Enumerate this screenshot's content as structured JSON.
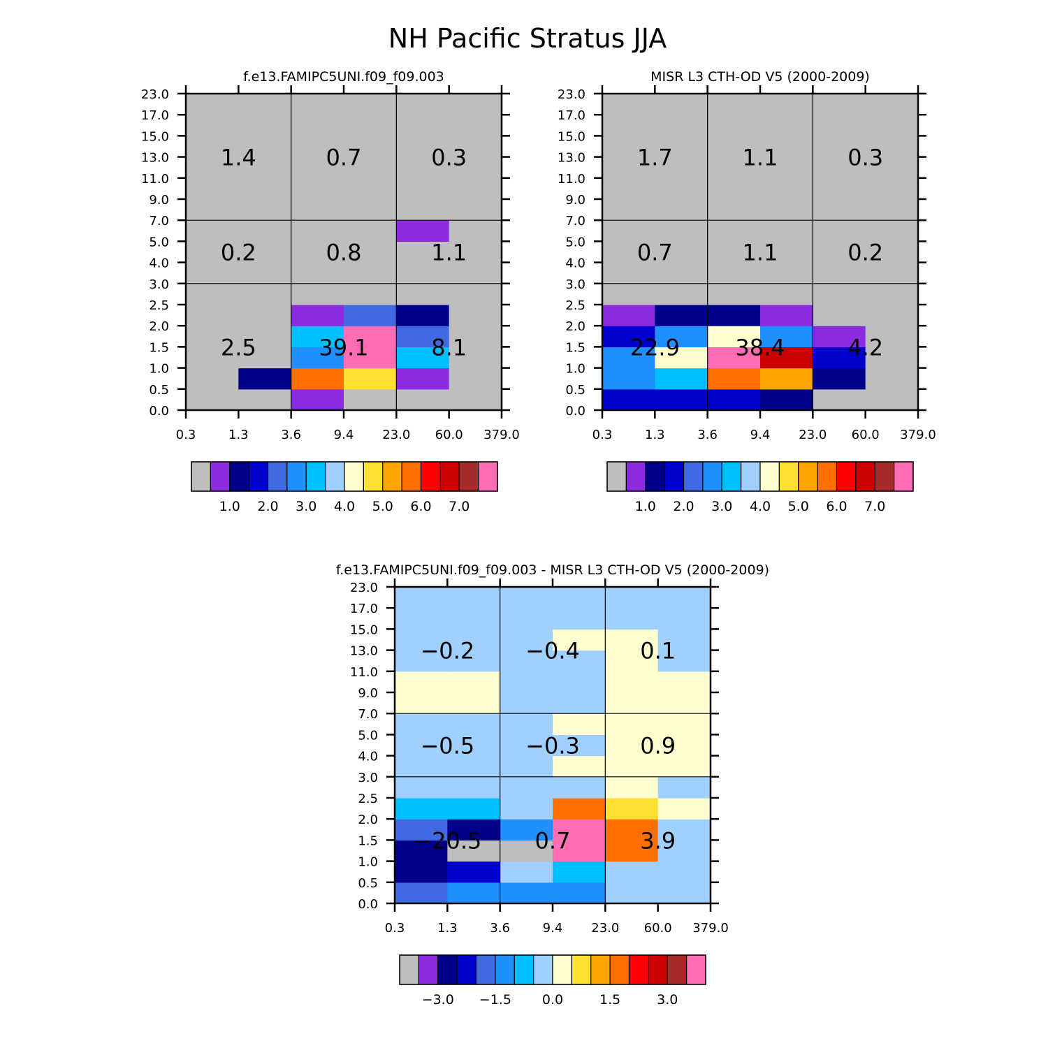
{
  "title": "NH Pacific Stratus JJA",
  "chart_data": {
    "type": "heatmap",
    "x_tick_labels": [
      "0.3",
      "1.3",
      "3.6",
      "9.4",
      "23.0",
      "60.0",
      "379.0"
    ],
    "y_tick_labels": [
      "0.0",
      "0.5",
      "1.0",
      "1.5",
      "2.0",
      "2.5",
      "3.0",
      "4.0",
      "5.0",
      "7.0",
      "9.0",
      "11.0",
      "13.0",
      "15.0",
      "17.0",
      "23.0"
    ],
    "panels": [
      {
        "id": "model",
        "title": "f.e13.FAMIPC5UNI.f09_f09.003",
        "cells": [
          [
            "#BEBEBE",
            "#BEBEBE",
            "#8A2BE2",
            "#BEBEBE",
            "#BEBEBE",
            "#BEBEBE"
          ],
          [
            "#BEBEBE",
            "#00008B",
            "#FF7000",
            "#FFE030",
            "#8A2BE2",
            "#BEBEBE"
          ],
          [
            "#BEBEBE",
            "#BEBEBE",
            "#1E90FF",
            "#FF6EB4",
            "#00BFFF",
            "#BEBEBE"
          ],
          [
            "#BEBEBE",
            "#BEBEBE",
            "#00BFFF",
            "#FF6EB4",
            "#4169E1",
            "#BEBEBE"
          ],
          [
            "#BEBEBE",
            "#BEBEBE",
            "#8A2BE2",
            "#4169E1",
            "#00008B",
            "#BEBEBE"
          ],
          [
            "#BEBEBE",
            "#BEBEBE",
            "#BEBEBE",
            "#BEBEBE",
            "#BEBEBE",
            "#BEBEBE"
          ],
          [
            "#BEBEBE",
            "#BEBEBE",
            "#BEBEBE",
            "#BEBEBE",
            "#BEBEBE",
            "#BEBEBE"
          ],
          [
            "#BEBEBE",
            "#BEBEBE",
            "#BEBEBE",
            "#BEBEBE",
            "#BEBEBE",
            "#BEBEBE"
          ],
          [
            "#BEBEBE",
            "#BEBEBE",
            "#BEBEBE",
            "#BEBEBE",
            "#8A2BE2",
            "#BEBEBE"
          ],
          [
            "#BEBEBE",
            "#BEBEBE",
            "#BEBEBE",
            "#BEBEBE",
            "#BEBEBE",
            "#BEBEBE"
          ],
          [
            "#BEBEBE",
            "#BEBEBE",
            "#BEBEBE",
            "#BEBEBE",
            "#BEBEBE",
            "#BEBEBE"
          ],
          [
            "#BEBEBE",
            "#BEBEBE",
            "#BEBEBE",
            "#BEBEBE",
            "#BEBEBE",
            "#BEBEBE"
          ],
          [
            "#BEBEBE",
            "#BEBEBE",
            "#BEBEBE",
            "#BEBEBE",
            "#BEBEBE",
            "#BEBEBE"
          ],
          [
            "#BEBEBE",
            "#BEBEBE",
            "#BEBEBE",
            "#BEBEBE",
            "#BEBEBE",
            "#BEBEBE"
          ],
          [
            "#BEBEBE",
            "#BEBEBE",
            "#BEBEBE",
            "#BEBEBE",
            "#BEBEBE",
            "#BEBEBE"
          ]
        ],
        "block_totals": [
          {
            "col": 0,
            "row": 0,
            "text": "2.5"
          },
          {
            "col": 1,
            "row": 0,
            "text": "39.1"
          },
          {
            "col": 2,
            "row": 0,
            "text": "8.1"
          },
          {
            "col": 0,
            "row": 1,
            "text": "0.2"
          },
          {
            "col": 1,
            "row": 1,
            "text": "0.8"
          },
          {
            "col": 2,
            "row": 1,
            "text": "1.1"
          },
          {
            "col": 0,
            "row": 2,
            "text": "1.4"
          },
          {
            "col": 1,
            "row": 2,
            "text": "0.7"
          },
          {
            "col": 2,
            "row": 2,
            "text": "0.3"
          }
        ],
        "colorbar": {
          "colors": [
            "#BEBEBE",
            "#8A2BE2",
            "#00008B",
            "#0000CD",
            "#4169E1",
            "#1E90FF",
            "#00BFFF",
            "#A0D0FF",
            "#FFFFD0",
            "#FFE030",
            "#FFA500",
            "#FF7000",
            "#FF0000",
            "#CD0000",
            "#A52A2A",
            "#FF6EB4"
          ],
          "labels": [
            "1.0",
            "2.0",
            "3.0",
            "4.0",
            "5.0",
            "6.0",
            "7.0"
          ]
        }
      },
      {
        "id": "obs",
        "title": "MISR L3 CTH-OD V5 (2000-2009)",
        "cells": [
          [
            "#0000CD",
            "#0000CD",
            "#0000CD",
            "#00008B",
            "#BEBEBE",
            "#BEBEBE"
          ],
          [
            "#1E90FF",
            "#00BFFF",
            "#FF7000",
            "#FFA500",
            "#00008B",
            "#BEBEBE"
          ],
          [
            "#1E90FF",
            "#FFFFD0",
            "#FF6EB4",
            "#CD0000",
            "#0000CD",
            "#BEBEBE"
          ],
          [
            "#0000CD",
            "#1E90FF",
            "#FFFFD0",
            "#1E90FF",
            "#8A2BE2",
            "#BEBEBE"
          ],
          [
            "#8A2BE2",
            "#00008B",
            "#00008B",
            "#8A2BE2",
            "#BEBEBE",
            "#BEBEBE"
          ],
          [
            "#BEBEBE",
            "#BEBEBE",
            "#BEBEBE",
            "#BEBEBE",
            "#BEBEBE",
            "#BEBEBE"
          ],
          [
            "#BEBEBE",
            "#BEBEBE",
            "#BEBEBE",
            "#BEBEBE",
            "#BEBEBE",
            "#BEBEBE"
          ],
          [
            "#BEBEBE",
            "#BEBEBE",
            "#BEBEBE",
            "#BEBEBE",
            "#BEBEBE",
            "#BEBEBE"
          ],
          [
            "#BEBEBE",
            "#BEBEBE",
            "#BEBEBE",
            "#BEBEBE",
            "#BEBEBE",
            "#BEBEBE"
          ],
          [
            "#BEBEBE",
            "#BEBEBE",
            "#BEBEBE",
            "#BEBEBE",
            "#BEBEBE",
            "#BEBEBE"
          ],
          [
            "#BEBEBE",
            "#BEBEBE",
            "#BEBEBE",
            "#BEBEBE",
            "#BEBEBE",
            "#BEBEBE"
          ],
          [
            "#BEBEBE",
            "#BEBEBE",
            "#BEBEBE",
            "#BEBEBE",
            "#BEBEBE",
            "#BEBEBE"
          ],
          [
            "#BEBEBE",
            "#BEBEBE",
            "#BEBEBE",
            "#BEBEBE",
            "#BEBEBE",
            "#BEBEBE"
          ],
          [
            "#BEBEBE",
            "#BEBEBE",
            "#BEBEBE",
            "#BEBEBE",
            "#BEBEBE",
            "#BEBEBE"
          ],
          [
            "#BEBEBE",
            "#BEBEBE",
            "#BEBEBE",
            "#BEBEBE",
            "#BEBEBE",
            "#BEBEBE"
          ]
        ],
        "block_totals": [
          {
            "col": 0,
            "row": 0,
            "text": "22.9"
          },
          {
            "col": 1,
            "row": 0,
            "text": "38.4"
          },
          {
            "col": 2,
            "row": 0,
            "text": "4.2"
          },
          {
            "col": 0,
            "row": 1,
            "text": "0.7"
          },
          {
            "col": 1,
            "row": 1,
            "text": "1.1"
          },
          {
            "col": 2,
            "row": 1,
            "text": "0.2"
          },
          {
            "col": 0,
            "row": 2,
            "text": "1.7"
          },
          {
            "col": 1,
            "row": 2,
            "text": "1.1"
          },
          {
            "col": 2,
            "row": 2,
            "text": "0.3"
          }
        ],
        "colorbar": {
          "colors": [
            "#BEBEBE",
            "#8A2BE2",
            "#00008B",
            "#0000CD",
            "#4169E1",
            "#1E90FF",
            "#00BFFF",
            "#A0D0FF",
            "#FFFFD0",
            "#FFE030",
            "#FFA500",
            "#FF7000",
            "#FF0000",
            "#CD0000",
            "#A52A2A",
            "#FF6EB4"
          ],
          "labels": [
            "1.0",
            "2.0",
            "3.0",
            "4.0",
            "5.0",
            "6.0",
            "7.0"
          ]
        }
      },
      {
        "id": "diff",
        "title": "f.e13.FAMIPC5UNI.f09_f09.003 - MISR L3 CTH-OD V5 (2000-2009)",
        "cells": [
          [
            "#4169E1",
            "#1E90FF",
            "#1E90FF",
            "#1E90FF",
            "#A0D0FF",
            "#A0D0FF"
          ],
          [
            "#00008B",
            "#0000CD",
            "#A0D0FF",
            "#00BFFF",
            "#A0D0FF",
            "#A0D0FF"
          ],
          [
            "#00008B",
            "#BEBEBE",
            "#BEBEBE",
            "#FF6EB4",
            "#FF7000",
            "#A0D0FF"
          ],
          [
            "#4169E1",
            "#00008B",
            "#1E90FF",
            "#FF6EB4",
            "#FF7000",
            "#A0D0FF"
          ],
          [
            "#00BFFF",
            "#00BFFF",
            "#A0D0FF",
            "#FF7000",
            "#FFE030",
            "#FFFFD0"
          ],
          [
            "#A0D0FF",
            "#A0D0FF",
            "#A0D0FF",
            "#A0D0FF",
            "#FFFFD0",
            "#A0D0FF"
          ],
          [
            "#A0D0FF",
            "#A0D0FF",
            "#A0D0FF",
            "#FFFFD0",
            "#FFFFD0",
            "#FFFFD0"
          ],
          [
            "#A0D0FF",
            "#A0D0FF",
            "#A0D0FF",
            "#A0D0FF",
            "#FFFFD0",
            "#FFFFD0"
          ],
          [
            "#A0D0FF",
            "#A0D0FF",
            "#A0D0FF",
            "#FFFFD0",
            "#FFFFD0",
            "#FFFFD0"
          ],
          [
            "#FFFFD0",
            "#FFFFD0",
            "#A0D0FF",
            "#A0D0FF",
            "#FFFFD0",
            "#FFFFD0"
          ],
          [
            "#FFFFD0",
            "#FFFFD0",
            "#A0D0FF",
            "#A0D0FF",
            "#FFFFD0",
            "#FFFFD0"
          ],
          [
            "#A0D0FF",
            "#A0D0FF",
            "#A0D0FF",
            "#A0D0FF",
            "#FFFFD0",
            "#A0D0FF"
          ],
          [
            "#A0D0FF",
            "#A0D0FF",
            "#A0D0FF",
            "#FFFFD0",
            "#FFFFD0",
            "#A0D0FF"
          ],
          [
            "#A0D0FF",
            "#A0D0FF",
            "#A0D0FF",
            "#A0D0FF",
            "#A0D0FF",
            "#A0D0FF"
          ],
          [
            "#A0D0FF",
            "#A0D0FF",
            "#A0D0FF",
            "#A0D0FF",
            "#A0D0FF",
            "#A0D0FF"
          ]
        ],
        "block_totals": [
          {
            "col": 0,
            "row": 0,
            "text": "-20.5"
          },
          {
            "col": 1,
            "row": 0,
            "text": "0.7"
          },
          {
            "col": 2,
            "row": 0,
            "text": "3.9"
          },
          {
            "col": 0,
            "row": 1,
            "text": "-0.5"
          },
          {
            "col": 1,
            "row": 1,
            "text": "-0.3"
          },
          {
            "col": 2,
            "row": 1,
            "text": "0.9"
          },
          {
            "col": 0,
            "row": 2,
            "text": "-0.2"
          },
          {
            "col": 1,
            "row": 2,
            "text": "-0.4"
          },
          {
            "col": 2,
            "row": 2,
            "text": "0.1"
          }
        ],
        "colorbar": {
          "colors": [
            "#BEBEBE",
            "#8A2BE2",
            "#00008B",
            "#0000CD",
            "#4169E1",
            "#1E90FF",
            "#00BFFF",
            "#A0D0FF",
            "#FFFFD0",
            "#FFE030",
            "#FFA500",
            "#FF7000",
            "#FF0000",
            "#CD0000",
            "#A52A2A",
            "#FF6EB4"
          ],
          "labels": [
            "-3.0",
            "-1.5",
            "0.0",
            "1.5",
            "3.0"
          ]
        }
      }
    ]
  }
}
